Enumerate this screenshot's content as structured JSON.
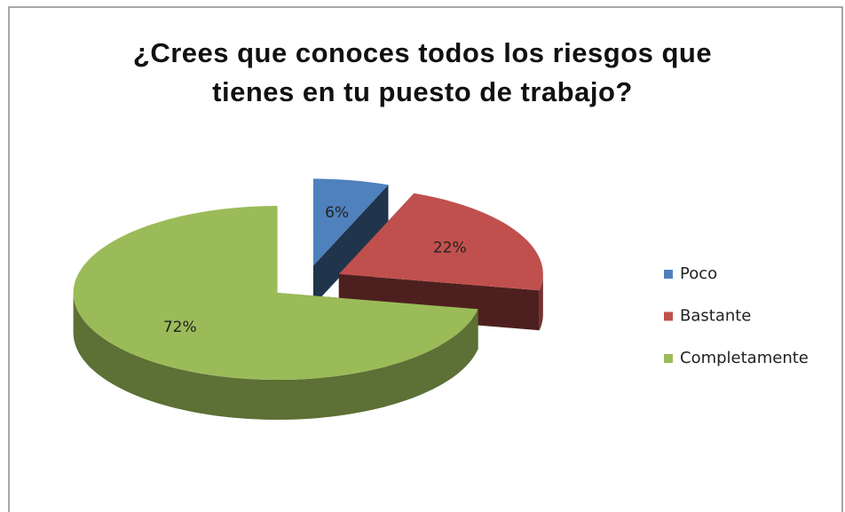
{
  "chart_data": {
    "type": "pie3d",
    "title": "¿Crees que conoces todos los riesgos que tienes en tu puesto de trabajo?",
    "categories": [
      "Poco",
      "Bastante",
      "Completamente"
    ],
    "values": [
      6,
      22,
      72
    ],
    "value_labels": [
      "6%",
      "22%",
      "72%"
    ],
    "colors": [
      "#4f81bd",
      "#c0504d",
      "#9bbb59"
    ],
    "legend": "right"
  }
}
